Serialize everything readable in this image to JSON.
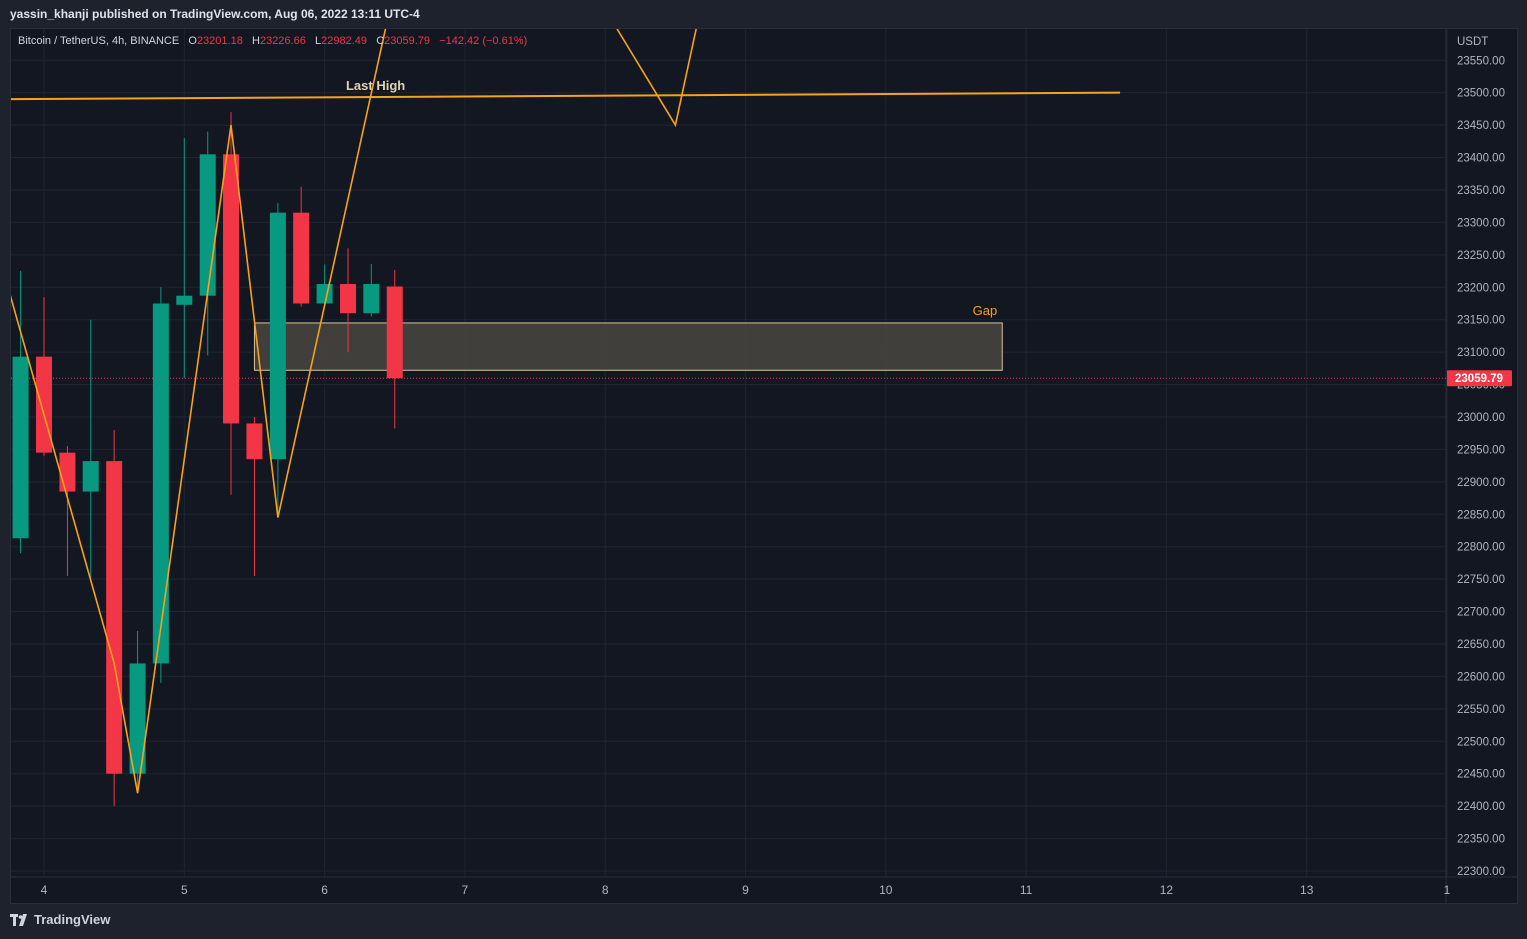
{
  "header": {
    "publisher": "yassin_khanji published on TradingView.com, Aug 06, 2022 13:11 UTC-4"
  },
  "legend": {
    "symbol": "Bitcoin / TetherUS, 4h, BINANCE",
    "o_label": "O",
    "o_value": "23201.18",
    "h_label": "H",
    "h_value": "23226.66",
    "l_label": "L",
    "l_value": "22982.49",
    "c_label": "C",
    "c_value": "23059.79",
    "change": "−142.42 (−0.61%)"
  },
  "footer": {
    "brand": "TradingView",
    "logo_icon": "tradingview-logo-icon"
  },
  "colors": {
    "up": "#089981",
    "down": "#f23645",
    "drawing": "#f7a21b",
    "gap_fill": "#4a4640",
    "grid": "#1f2431",
    "background": "#131722"
  },
  "chart_data": {
    "type": "candlestick",
    "currency_label": "USDT",
    "last_price_label": "23059.79",
    "ylim": [
      22270,
      23600
    ],
    "y_ticks": [
      22300,
      22350,
      22400,
      22450,
      22500,
      22550,
      22600,
      22650,
      22700,
      22750,
      22800,
      22850,
      22900,
      22950,
      23000,
      23050,
      23100,
      23150,
      23200,
      23250,
      23300,
      23350,
      23400,
      23450,
      23500,
      23550
    ],
    "x_ticks": [
      {
        "t": 4,
        "label": "4"
      },
      {
        "t": 5,
        "label": "5"
      },
      {
        "t": 6,
        "label": "6"
      },
      {
        "t": 7,
        "label": "7"
      },
      {
        "t": 8,
        "label": "8"
      },
      {
        "t": 9,
        "label": "9"
      },
      {
        "t": 10,
        "label": "10"
      },
      {
        "t": 11,
        "label": "11"
      },
      {
        "t": 12,
        "label": "12"
      },
      {
        "t": 13,
        "label": "13"
      },
      {
        "t": 14,
        "label": "1"
      }
    ],
    "candles": [
      {
        "t": 3.833,
        "o": 22813,
        "h": 23225,
        "l": 22790,
        "c": 23093
      },
      {
        "t": 4.0,
        "o": 23093,
        "h": 23185,
        "l": 22940,
        "c": 22945
      },
      {
        "t": 4.167,
        "o": 22945,
        "h": 22955,
        "l": 22755,
        "c": 22885
      },
      {
        "t": 4.333,
        "o": 22885,
        "h": 23150,
        "l": 22750,
        "c": 22932
      },
      {
        "t": 4.5,
        "o": 22932,
        "h": 22980,
        "l": 22400,
        "c": 22450
      },
      {
        "t": 4.667,
        "o": 22450,
        "h": 22670,
        "l": 22420,
        "c": 22620
      },
      {
        "t": 4.833,
        "o": 22620,
        "h": 23200,
        "l": 22590,
        "c": 23175
      },
      {
        "t": 5.0,
        "o": 23173,
        "h": 23430,
        "l": 23060,
        "c": 23187
      },
      {
        "t": 5.167,
        "o": 23187,
        "h": 23440,
        "l": 23095,
        "c": 23405
      },
      {
        "t": 5.333,
        "o": 23405,
        "h": 23470,
        "l": 22880,
        "c": 22990
      },
      {
        "t": 5.5,
        "o": 22990,
        "h": 23000,
        "l": 22755,
        "c": 22935
      },
      {
        "t": 5.667,
        "o": 22935,
        "h": 23330,
        "l": 22850,
        "c": 23315
      },
      {
        "t": 5.833,
        "o": 23315,
        "h": 23355,
        "l": 23170,
        "c": 23175
      },
      {
        "t": 6.0,
        "o": 23175,
        "h": 23235,
        "l": 23175,
        "c": 23205
      },
      {
        "t": 6.167,
        "o": 23205,
        "h": 23260,
        "l": 23100,
        "c": 23160
      },
      {
        "t": 6.333,
        "o": 23160,
        "h": 23236,
        "l": 23155,
        "c": 23205
      },
      {
        "t": 6.5,
        "o": 23201.18,
        "h": 23226.66,
        "l": 22982.49,
        "c": 23059.79
      }
    ],
    "zigzag": [
      {
        "t": 3.75,
        "v": 23195
      },
      {
        "t": 4.5,
        "v": 22620
      },
      {
        "t": 4.667,
        "v": 22420
      },
      {
        "t": 5.333,
        "v": 23450
      },
      {
        "t": 5.667,
        "v": 22845
      },
      {
        "t": 6.583,
        "v": 23745
      }
    ],
    "zigzag_2": [
      {
        "t": 8.08,
        "v": 23600
      },
      {
        "t": 8.5,
        "v": 23450
      },
      {
        "t": 8.65,
        "v": 23600
      }
    ],
    "last_high": {
      "label": "Last High",
      "t1": 3.75,
      "v1": 23490,
      "t2": 11.67,
      "v2": 23500
    },
    "gap_zone": {
      "label": "Gap",
      "t1": 5.5,
      "t2": 10.83,
      "top": 23145,
      "bottom": 23072
    }
  }
}
